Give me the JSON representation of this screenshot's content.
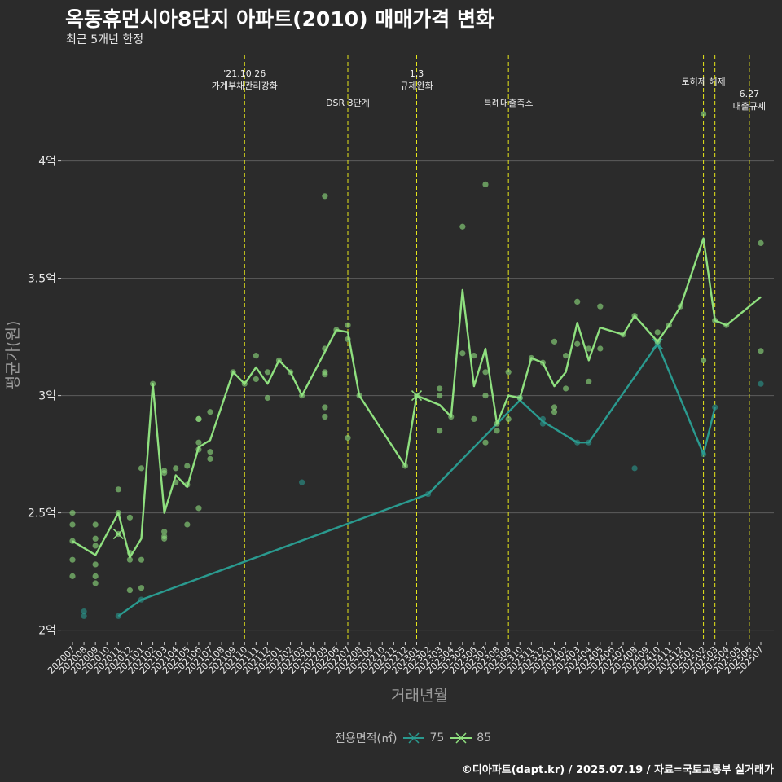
{
  "header": {
    "title": "옥동휴먼시아8단지 아파트(2010) 매매가격 변화",
    "subtitle": "최근 5개년 한정"
  },
  "caption": "©디아파트(dapt.kr) / 2025.07.19 / 자료=국토교통부 실거래가",
  "colors": {
    "background": "#2b2b2b",
    "grid": "#5c5c5c",
    "series_75": "#2a9a8f",
    "series_85": "#8fe07f",
    "event_line": "#e6e61a",
    "text": "#e8e8e8"
  },
  "legend": {
    "title": "전용면적(㎡)",
    "items": [
      "75",
      "85"
    ]
  },
  "chart_data": {
    "type": "line",
    "title": "옥동휴먼시아8단지 아파트(2010) 매매가격 변화",
    "xlabel": "거래년월",
    "ylabel": "평균가(원)",
    "ylim": [
      1.95,
      4.45
    ],
    "yticks": [
      {
        "value": 2,
        "label": "2억"
      },
      {
        "value": 2.5,
        "label": "2.5억"
      },
      {
        "value": 3,
        "label": "3억"
      },
      {
        "value": 3.5,
        "label": "3.5억"
      },
      {
        "value": 4,
        "label": "4억"
      }
    ],
    "x": [
      "202007",
      "202008",
      "202009",
      "202010",
      "202011",
      "202012",
      "202101",
      "202102",
      "202103",
      "202104",
      "202105",
      "202106",
      "202107",
      "202108",
      "202109",
      "202110",
      "202111",
      "202112",
      "202201",
      "202202",
      "202203",
      "202204",
      "202205",
      "202206",
      "202207",
      "202208",
      "202209",
      "202210",
      "202211",
      "202212",
      "202301",
      "202302",
      "202303",
      "202304",
      "202305",
      "202306",
      "202307",
      "202308",
      "202309",
      "202310",
      "202311",
      "202312",
      "202401",
      "202402",
      "202403",
      "202404",
      "202405",
      "202406",
      "202407",
      "202408",
      "202409",
      "202410",
      "202411",
      "202412",
      "202501",
      "202502",
      "202503",
      "202504",
      "202505",
      "202506",
      "202507"
    ],
    "series": [
      {
        "name": "75",
        "color": "#2a9a8f",
        "line": [
          [
            "202011",
            2.06
          ],
          [
            "202101",
            2.13
          ],
          [
            "202302",
            2.58
          ],
          [
            "202310",
            2.98
          ],
          [
            "202312",
            2.89
          ],
          [
            "202403",
            2.8
          ],
          [
            "202404",
            2.8
          ],
          [
            "202410",
            3.22
          ],
          [
            "202502",
            2.75
          ],
          [
            "202503",
            2.95
          ]
        ],
        "points": [
          [
            "202008",
            2.08
          ],
          [
            "202008",
            2.06
          ],
          [
            "202011",
            2.06
          ],
          [
            "202101",
            2.13
          ],
          [
            "202203",
            2.63
          ],
          [
            "202302",
            2.58
          ],
          [
            "202310",
            2.99
          ],
          [
            "202312",
            2.9
          ],
          [
            "202312",
            2.88
          ],
          [
            "202403",
            2.8
          ],
          [
            "202404",
            2.8
          ],
          [
            "202408",
            2.69
          ],
          [
            "202410",
            3.22
          ],
          [
            "202502",
            2.75
          ],
          [
            "202503",
            2.95
          ],
          [
            "202507",
            3.05
          ]
        ]
      },
      {
        "name": "85",
        "color": "#8fe07f",
        "line": [
          [
            "202007",
            2.38
          ],
          [
            "202009",
            2.32
          ],
          [
            "202011",
            2.5
          ],
          [
            "202012",
            2.31
          ],
          [
            "202101",
            2.39
          ],
          [
            "202102",
            3.05
          ],
          [
            "202103",
            2.5
          ],
          [
            "202104",
            2.66
          ],
          [
            "202105",
            2.61
          ],
          [
            "202106",
            2.78
          ],
          [
            "202107",
            2.81
          ],
          [
            "202109",
            3.1
          ],
          [
            "202110",
            3.05
          ],
          [
            "202111",
            3.12
          ],
          [
            "202112",
            3.05
          ],
          [
            "202201",
            3.15
          ],
          [
            "202202",
            3.1
          ],
          [
            "202203",
            3.0
          ],
          [
            "202206",
            3.28
          ],
          [
            "202207",
            3.27
          ],
          [
            "202208",
            3.0
          ],
          [
            "202212",
            2.7
          ],
          [
            "202301",
            3.0
          ],
          [
            "202303",
            2.96
          ],
          [
            "202304",
            2.91
          ],
          [
            "202305",
            3.45
          ],
          [
            "202306",
            3.04
          ],
          [
            "202307",
            3.2
          ],
          [
            "202308",
            2.88
          ],
          [
            "202309",
            3.0
          ],
          [
            "202310",
            2.99
          ],
          [
            "202311",
            3.16
          ],
          [
            "202312",
            3.14
          ],
          [
            "202401",
            3.04
          ],
          [
            "202402",
            3.1
          ],
          [
            "202403",
            3.31
          ],
          [
            "202404",
            3.15
          ],
          [
            "202405",
            3.29
          ],
          [
            "202407",
            3.26
          ],
          [
            "202408",
            3.34
          ],
          [
            "202410",
            3.23
          ],
          [
            "202411",
            3.3
          ],
          [
            "202412",
            3.38
          ],
          [
            "202502",
            3.67
          ],
          [
            "202503",
            3.32
          ],
          [
            "202504",
            3.3
          ],
          [
            "202507",
            3.42
          ]
        ],
        "points": [
          [
            "202007",
            2.5
          ],
          [
            "202007",
            2.45
          ],
          [
            "202007",
            2.38
          ],
          [
            "202007",
            2.3
          ],
          [
            "202007",
            2.23
          ],
          [
            "202009",
            2.45
          ],
          [
            "202009",
            2.39
          ],
          [
            "202009",
            2.36
          ],
          [
            "202009",
            2.28
          ],
          [
            "202009",
            2.23
          ],
          [
            "202009",
            2.2
          ],
          [
            "202011",
            2.6
          ],
          [
            "202011",
            2.5
          ],
          [
            "202011",
            2.41
          ],
          [
            "202012",
            2.48
          ],
          [
            "202012",
            2.33
          ],
          [
            "202012",
            2.3
          ],
          [
            "202012",
            2.17
          ],
          [
            "202101",
            2.69
          ],
          [
            "202101",
            2.3
          ],
          [
            "202101",
            2.18
          ],
          [
            "202102",
            3.05
          ],
          [
            "202103",
            2.68
          ],
          [
            "202103",
            2.67
          ],
          [
            "202103",
            2.42
          ],
          [
            "202103",
            2.4
          ],
          [
            "202103",
            2.39
          ],
          [
            "202104",
            2.69
          ],
          [
            "202104",
            2.63
          ],
          [
            "202105",
            2.7
          ],
          [
            "202105",
            2.62
          ],
          [
            "202105",
            2.45
          ],
          [
            "202106",
            2.9
          ],
          [
            "202106",
            2.9
          ],
          [
            "202106",
            2.8
          ],
          [
            "202106",
            2.77
          ],
          [
            "202106",
            2.52
          ],
          [
            "202107",
            2.93
          ],
          [
            "202107",
            2.76
          ],
          [
            "202107",
            2.73
          ],
          [
            "202109",
            3.1
          ],
          [
            "202110",
            3.05
          ],
          [
            "202111",
            3.17
          ],
          [
            "202111",
            3.07
          ],
          [
            "202112",
            3.1
          ],
          [
            "202112",
            2.99
          ],
          [
            "202201",
            3.15
          ],
          [
            "202202",
            3.1
          ],
          [
            "202203",
            3.0
          ],
          [
            "202205",
            3.85
          ],
          [
            "202205",
            3.2
          ],
          [
            "202205",
            3.1
          ],
          [
            "202205",
            3.09
          ],
          [
            "202205",
            2.95
          ],
          [
            "202205",
            2.91
          ],
          [
            "202206",
            3.28
          ],
          [
            "202207",
            3.3
          ],
          [
            "202207",
            3.24
          ],
          [
            "202207",
            2.82
          ],
          [
            "202208",
            3.0
          ],
          [
            "202212",
            2.7
          ],
          [
            "202301",
            3.0
          ],
          [
            "202303",
            3.03
          ],
          [
            "202303",
            3.0
          ],
          [
            "202303",
            2.85
          ],
          [
            "202304",
            2.91
          ],
          [
            "202305",
            3.72
          ],
          [
            "202305",
            3.18
          ],
          [
            "202306",
            3.17
          ],
          [
            "202306",
            2.9
          ],
          [
            "202307",
            3.9
          ],
          [
            "202307",
            3.1
          ],
          [
            "202307",
            3.0
          ],
          [
            "202307",
            2.8
          ],
          [
            "202308",
            2.88
          ],
          [
            "202308",
            2.85
          ],
          [
            "202309",
            3.1
          ],
          [
            "202309",
            2.9
          ],
          [
            "202310",
            2.99
          ],
          [
            "202311",
            3.16
          ],
          [
            "202312",
            3.14
          ],
          [
            "202401",
            3.23
          ],
          [
            "202401",
            2.95
          ],
          [
            "202401",
            2.93
          ],
          [
            "202402",
            3.17
          ],
          [
            "202402",
            3.03
          ],
          [
            "202403",
            3.4
          ],
          [
            "202403",
            3.22
          ],
          [
            "202404",
            3.2
          ],
          [
            "202404",
            3.06
          ],
          [
            "202405",
            3.38
          ],
          [
            "202405",
            3.2
          ],
          [
            "202407",
            3.26
          ],
          [
            "202408",
            3.34
          ],
          [
            "202410",
            3.27
          ],
          [
            "202410",
            3.23
          ],
          [
            "202411",
            3.3
          ],
          [
            "202412",
            3.38
          ],
          [
            "202502",
            4.2
          ],
          [
            "202502",
            3.15
          ],
          [
            "202503",
            3.32
          ],
          [
            "202504",
            3.3
          ],
          [
            "202507",
            3.65
          ],
          [
            "202507",
            3.19
          ]
        ]
      }
    ],
    "events": [
      {
        "x": "202110",
        "label": [
          "'21.10.26",
          "가계부채관리강화"
        ],
        "row": "upper"
      },
      {
        "x": "202207",
        "label": [
          "DSR 3단계"
        ],
        "row": "lower"
      },
      {
        "x": "202301",
        "label": [
          "1.3",
          "규제완화"
        ],
        "row": "upper"
      },
      {
        "x": "202309",
        "label": [
          "특례대출축소"
        ],
        "row": "lower"
      },
      {
        "x": "202502",
        "label": [
          "토허제 해제"
        ],
        "row": "top"
      },
      {
        "x": "202503",
        "label": [],
        "row": "top"
      },
      {
        "x": "202506",
        "label": [
          "6.27",
          "대출규제"
        ],
        "row": "right"
      }
    ],
    "highlight_markers": [
      {
        "series": "85",
        "x": "202011",
        "y": 2.41
      },
      {
        "series": "85",
        "x": "202301",
        "y": 3.0
      },
      {
        "series": "75",
        "x": "202410",
        "y": 3.22
      }
    ],
    "legend_position": "bottom",
    "grid": true
  }
}
